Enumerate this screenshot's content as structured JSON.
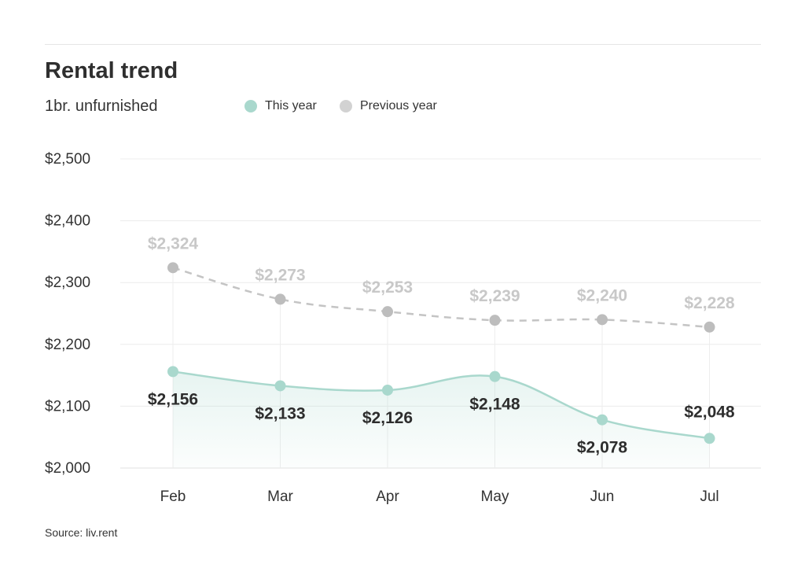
{
  "title": "Rental trend",
  "subtitle": "1br. unfurnished",
  "source": "Source: liv.rent",
  "legend": {
    "this_year": "This year",
    "previous_year": "Previous year"
  },
  "colors": {
    "this_year": "#a9d8cd",
    "previous_year": "#cfcfcf",
    "this_year_label": "#2d2d2d",
    "previous_year_label": "#c8c8c8"
  },
  "chart_data": {
    "type": "line",
    "title": "Rental trend",
    "subtitle": "1br. unfurnished",
    "categories": [
      "Feb",
      "Mar",
      "Apr",
      "May",
      "Jun",
      "Jul"
    ],
    "series": [
      {
        "name": "This year",
        "values": [
          2156,
          2133,
          2126,
          2148,
          2078,
          2048
        ],
        "labels": [
          "$2,156",
          "$2,133",
          "$2,126",
          "$2,148",
          "$2,078",
          "$2,048"
        ],
        "style": "solid with area fill"
      },
      {
        "name": "Previous year",
        "values": [
          2324,
          2273,
          2253,
          2239,
          2240,
          2228
        ],
        "labels": [
          "$2,324",
          "$2,273",
          "$2,253",
          "$2,239",
          "$2,240",
          "$2,228"
        ],
        "style": "dashed"
      }
    ],
    "yticks": [
      "$2,000",
      "$2,100",
      "$2,200",
      "$2,300",
      "$2,400",
      "$2,500"
    ],
    "ylim": [
      2000,
      2500
    ],
    "grid": true,
    "legend_position": "top"
  }
}
